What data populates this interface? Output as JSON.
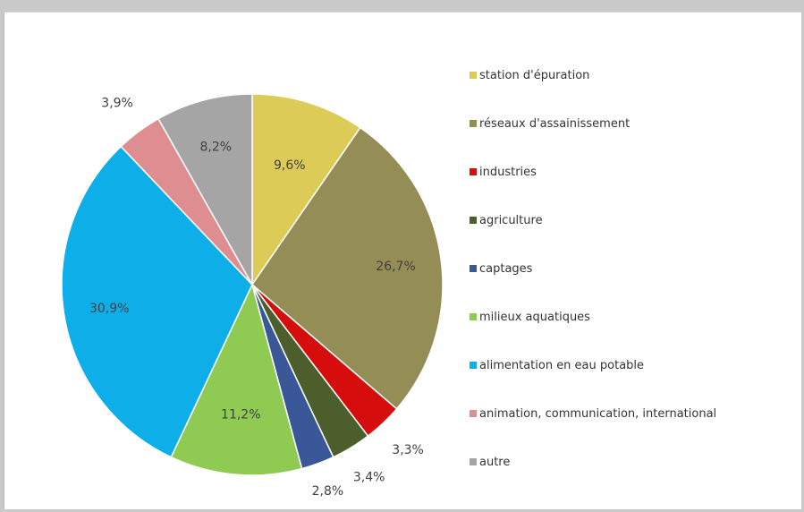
{
  "chart_data": {
    "type": "pie",
    "title": "",
    "start_angle_deg": 0,
    "direction": "clockwise",
    "legend_position": "right",
    "slices": [
      {
        "label": "station d'épuration",
        "value": 9.6,
        "display": "9,6%",
        "color": "#dccb57"
      },
      {
        "label": "réseaux d'assainissement",
        "value": 26.7,
        "display": "26,7%",
        "color": "#958d56"
      },
      {
        "label": "industries",
        "value": 3.3,
        "display": "3,3%",
        "color": "#d60d0d"
      },
      {
        "label": "agriculture",
        "value": 3.4,
        "display": "3,4%",
        "color": "#4b5e2c"
      },
      {
        "label": "captages",
        "value": 2.8,
        "display": "2,8%",
        "color": "#3a5898"
      },
      {
        "label": "milieux aquatiques",
        "value": 11.2,
        "display": "11,2%",
        "color": "#8fcb52"
      },
      {
        "label": "alimentation en eau potable",
        "value": 30.9,
        "display": "30,9%",
        "color": "#0eaee8"
      },
      {
        "label": "animation, communication, international",
        "value": 3.9,
        "display": "3,9%",
        "color": "#de8e91"
      },
      {
        "label": "autre",
        "value": 8.2,
        "display": "8,2%",
        "color": "#a5a5a5"
      }
    ]
  }
}
